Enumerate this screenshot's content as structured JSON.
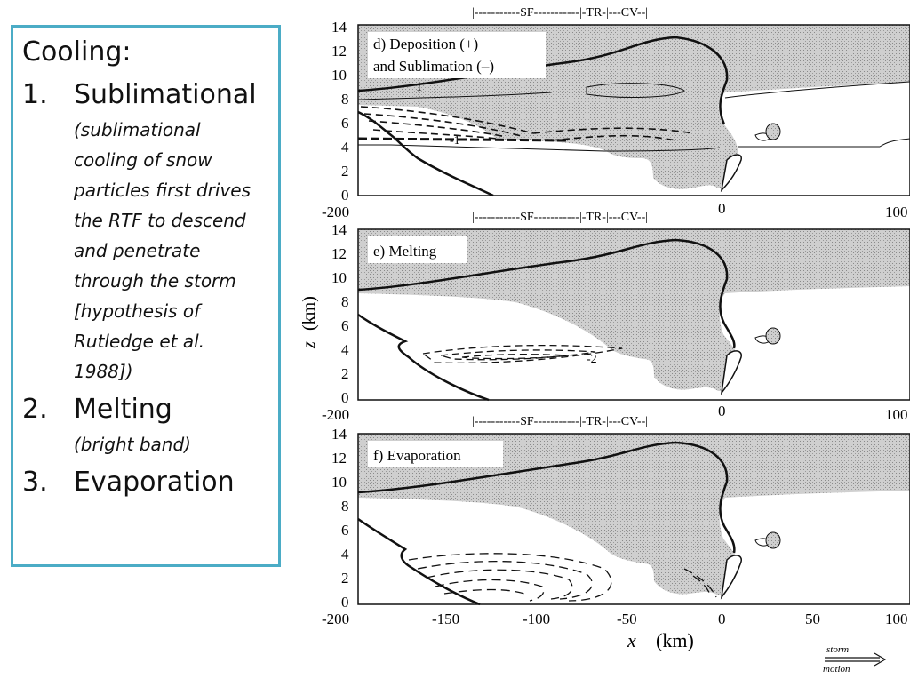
{
  "textbox": {
    "heading": "Cooling:",
    "items": [
      {
        "num": "1.",
        "label": "Sublimational",
        "note_lines": [
          "(sublimational",
          "cooling of snow",
          "particles first drives",
          "the RTF to descend",
          "and penetrate",
          "through the storm",
          "[hypothesis of",
          "Rutledge et al.",
          "1988])"
        ]
      },
      {
        "num": "2.",
        "label": "Melting",
        "note_lines": [
          "(bright band)"
        ]
      },
      {
        "num": "3.",
        "label": "Evaporation",
        "note_lines": []
      }
    ]
  },
  "figure": {
    "region_bar": "|-----------SF-----------|-TR-|---CV--|",
    "y_axis_label_var": "z",
    "y_axis_label_unit": "(km)",
    "x_axis_label_var": "x",
    "x_axis_label_unit": "(km)",
    "y_ticks": [
      "14",
      "12",
      "10",
      "8",
      "6",
      "4",
      "2",
      "0"
    ],
    "x_ticks_partial": [
      "-200",
      "0",
      "100"
    ],
    "x_ticks_full": [
      "-200",
      "-150",
      "-100",
      "-50",
      "0",
      "50",
      "100"
    ],
    "panels": [
      {
        "label_lines": [
          "d) Deposition (+)",
          "and Sublimation (–)"
        ],
        "contour_labels": [
          "1",
          "-1"
        ]
      },
      {
        "label_lines": [
          "e) Melting"
        ],
        "contour_labels": [
          "-2"
        ]
      },
      {
        "label_lines": [
          "f) Evaporation"
        ],
        "contour_labels": []
      }
    ],
    "storm_motion_lines": [
      "storm",
      "motion"
    ],
    "colors": {
      "shading": "#c8c8c8",
      "ink": "#111111",
      "border": "#4bacc6"
    }
  }
}
